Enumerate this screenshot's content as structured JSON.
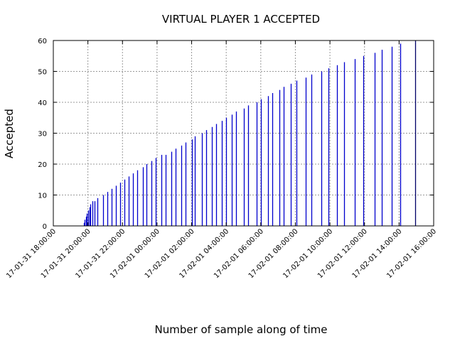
{
  "chart_data": {
    "type": "bar",
    "title": "VIRTUAL PLAYER 1 ACCEPTED",
    "xlabel": "Number of sample along of time",
    "ylabel": "Accepted",
    "ylim": [
      0,
      60
    ],
    "yticks": [
      0,
      10,
      20,
      30,
      40,
      50,
      60
    ],
    "xlim": [
      "17-01-31 18:00:00",
      "17-02-01 16:00:00"
    ],
    "xticks": [
      "17-01-31 18:00:00",
      "17-01-31 20:00:00",
      "17-01-31 22:00:00",
      "17-02-01 00:00:00",
      "17-02-01 02:00:00",
      "17-02-01 04:00:00",
      "17-02-01 06:00:00",
      "17-02-01 08:00:00",
      "17-02-01 10:00:00",
      "17-02-01 12:00:00",
      "17-02-01 14:00:00",
      "17-02-01 16:00:00"
    ],
    "grid": true,
    "color": "#0000cc",
    "last_color": "#000066",
    "points": [
      {
        "x": "17-01-31 19:45:00",
        "y": 1
      },
      {
        "x": "17-01-31 19:49:00",
        "y": 2
      },
      {
        "x": "17-01-31 19:53:00",
        "y": 3
      },
      {
        "x": "17-01-31 19:57:00",
        "y": 4
      },
      {
        "x": "17-01-31 20:01:00",
        "y": 5
      },
      {
        "x": "17-01-31 20:05:00",
        "y": 6
      },
      {
        "x": "17-01-31 20:09:00",
        "y": 7
      },
      {
        "x": "17-01-31 20:15:00",
        "y": 8
      },
      {
        "x": "17-01-31 20:24:00",
        "y": 8
      },
      {
        "x": "17-01-31 20:33:00",
        "y": 9
      },
      {
        "x": "17-01-31 20:52:00",
        "y": 10
      },
      {
        "x": "17-01-31 21:07:00",
        "y": 11
      },
      {
        "x": "17-01-31 21:22:00",
        "y": 12
      },
      {
        "x": "17-01-31 21:37:00",
        "y": 13
      },
      {
        "x": "17-01-31 21:52:00",
        "y": 14
      },
      {
        "x": "17-01-31 22:07:00",
        "y": 15
      },
      {
        "x": "17-01-31 22:22:00",
        "y": 16
      },
      {
        "x": "17-01-31 22:37:00",
        "y": 17
      },
      {
        "x": "17-01-31 22:52:00",
        "y": 18
      },
      {
        "x": "17-01-31 23:10:00",
        "y": 19
      },
      {
        "x": "17-01-31 23:22:00",
        "y": 20
      },
      {
        "x": "17-01-31 23:40:00",
        "y": 21
      },
      {
        "x": "17-01-31 23:55:00",
        "y": 22
      },
      {
        "x": "17-02-01 00:15:00",
        "y": 23
      },
      {
        "x": "17-02-01 00:30:00",
        "y": 23
      },
      {
        "x": "17-02-01 00:50:00",
        "y": 24
      },
      {
        "x": "17-02-01 01:05:00",
        "y": 25
      },
      {
        "x": "17-02-01 01:25:00",
        "y": 26
      },
      {
        "x": "17-02-01 01:40:00",
        "y": 27
      },
      {
        "x": "17-02-01 02:00:00",
        "y": 28
      },
      {
        "x": "17-02-01 02:10:00",
        "y": 29
      },
      {
        "x": "17-02-01 02:35:00",
        "y": 30
      },
      {
        "x": "17-02-01 02:50:00",
        "y": 31
      },
      {
        "x": "17-02-01 03:10:00",
        "y": 32
      },
      {
        "x": "17-02-01 03:25:00",
        "y": 33
      },
      {
        "x": "17-02-01 03:45:00",
        "y": 34
      },
      {
        "x": "17-02-01 04:00:00",
        "y": 35
      },
      {
        "x": "17-02-01 04:20:00",
        "y": 36
      },
      {
        "x": "17-02-01 04:35:00",
        "y": 37
      },
      {
        "x": "17-02-01 05:00:00",
        "y": 38
      },
      {
        "x": "17-02-01 05:15:00",
        "y": 39
      },
      {
        "x": "17-02-01 05:45:00",
        "y": 40
      },
      {
        "x": "17-02-01 06:00:00",
        "y": 41
      },
      {
        "x": "17-02-01 06:25:00",
        "y": 42
      },
      {
        "x": "17-02-01 06:40:00",
        "y": 43
      },
      {
        "x": "17-02-01 07:05:00",
        "y": 44
      },
      {
        "x": "17-02-01 07:20:00",
        "y": 45
      },
      {
        "x": "17-02-01 07:45:00",
        "y": 46
      },
      {
        "x": "17-02-01 08:05:00",
        "y": 47
      },
      {
        "x": "17-02-01 08:35:00",
        "y": 48
      },
      {
        "x": "17-02-01 08:55:00",
        "y": 49
      },
      {
        "x": "17-02-01 09:30:00",
        "y": 50
      },
      {
        "x": "17-02-01 09:55:00",
        "y": 51
      },
      {
        "x": "17-02-01 10:25:00",
        "y": 52
      },
      {
        "x": "17-02-01 10:50:00",
        "y": 53
      },
      {
        "x": "17-02-01 11:25:00",
        "y": 54
      },
      {
        "x": "17-02-01 11:55:00",
        "y": 55
      },
      {
        "x": "17-02-01 12:35:00",
        "y": 56
      },
      {
        "x": "17-02-01 13:00:00",
        "y": 57
      },
      {
        "x": "17-02-01 13:35:00",
        "y": 58
      },
      {
        "x": "17-02-01 14:05:00",
        "y": 59
      },
      {
        "x": "17-02-01 14:55:00",
        "y": 60
      }
    ]
  }
}
